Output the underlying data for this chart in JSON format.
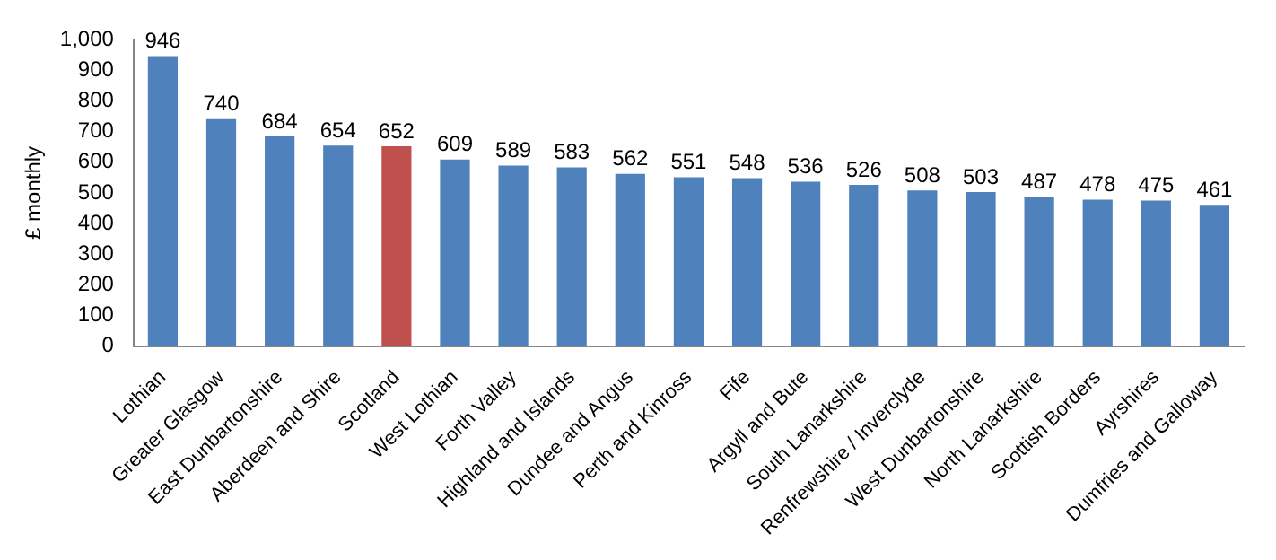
{
  "chart_data": {
    "type": "bar",
    "ylabel": "£ monthly",
    "categories": [
      "Lothian",
      "Greater Glasgow",
      "East Dunbartonshire",
      "Aberdeen and Shire",
      "Scotland",
      "West Lothian",
      "Forth Valley",
      "Highland and Islands",
      "Dundee and Angus",
      "Perth and Kinross",
      "Fife",
      "Argyll and Bute",
      "South Lanarkshire",
      "Renfrewshire / Inverclyde",
      "West Dunbartonshire",
      "North Lanarkshire",
      "Scottish Borders",
      "Ayrshires",
      "Dumfries and Galloway"
    ],
    "values": [
      946,
      740,
      684,
      654,
      652,
      609,
      589,
      583,
      562,
      551,
      548,
      536,
      526,
      508,
      503,
      487,
      478,
      475,
      461
    ],
    "colors": [
      "#4f81bd",
      "#4f81bd",
      "#4f81bd",
      "#4f81bd",
      "#c0504d",
      "#4f81bd",
      "#4f81bd",
      "#4f81bd",
      "#4f81bd",
      "#4f81bd",
      "#4f81bd",
      "#4f81bd",
      "#4f81bd",
      "#4f81bd",
      "#4f81bd",
      "#4f81bd",
      "#4f81bd",
      "#4f81bd",
      "#4f81bd"
    ],
    "ylim": [
      0,
      1000
    ],
    "yticks": [
      0,
      100,
      200,
      300,
      400,
      500,
      600,
      700,
      800,
      900,
      {
        "value": 1000,
        "label": "1,000"
      }
    ],
    "data_labels": true,
    "grid": false,
    "legend": false
  }
}
